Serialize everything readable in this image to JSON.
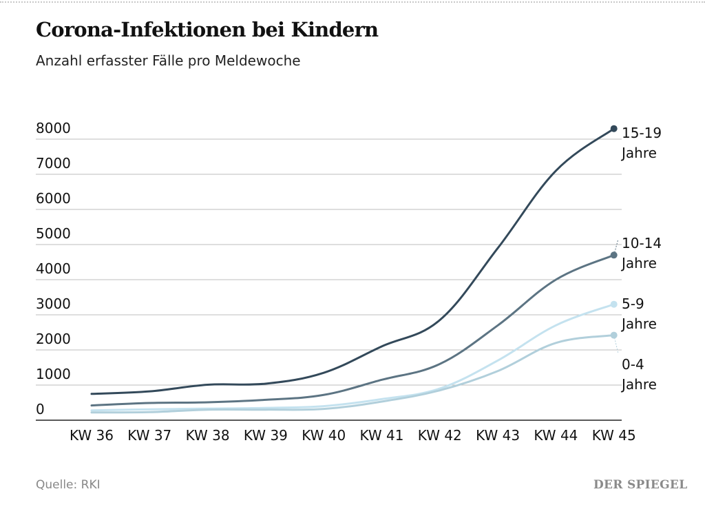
{
  "title": "Corona-Infektionen bei Kindern",
  "subtitle": "Anzahl erfasster Fälle pro Meldewoche",
  "source": "Quelle: RKI",
  "brand": "DER SPIEGEL",
  "chart_data": {
    "type": "line",
    "title": "Corona-Infektionen bei Kindern",
    "subtitle": "Anzahl erfasster Fälle pro Meldewoche",
    "xlabel": "",
    "ylabel": "",
    "categories": [
      "KW 36",
      "KW 37",
      "KW 38",
      "KW 39",
      "KW 40",
      "KW 41",
      "KW 42",
      "KW 43",
      "KW 44",
      "KW 45"
    ],
    "yticks": [
      0,
      1000,
      2000,
      3000,
      4000,
      5000,
      6000,
      7000,
      8000
    ],
    "ylim": [
      0,
      8000
    ],
    "grid": true,
    "series": [
      {
        "name": "15-19 Jahre",
        "label_lines": [
          "15-19",
          "Jahre"
        ],
        "color": "#33495a",
        "values": [
          750,
          820,
          1010,
          1040,
          1350,
          2100,
          2850,
          4900,
          7100,
          8300
        ]
      },
      {
        "name": "10-14 Jahre",
        "label_lines": [
          "10-14",
          "Jahre"
        ],
        "color": "#5c7483",
        "values": [
          420,
          490,
          510,
          580,
          720,
          1150,
          1600,
          2700,
          4000,
          4700
        ]
      },
      {
        "name": "5-9 Jahre",
        "label_lines": [
          "5-9",
          "Jahre"
        ],
        "color": "#c4e2ef",
        "values": [
          280,
          310,
          330,
          350,
          400,
          600,
          900,
          1700,
          2700,
          3300
        ]
      },
      {
        "name": "0-4 Jahre",
        "label_lines": [
          "0-4",
          "Jahre"
        ],
        "color": "#b1cfdb",
        "values": [
          220,
          230,
          300,
          300,
          320,
          530,
          850,
          1400,
          2200,
          2420
        ]
      }
    ]
  }
}
